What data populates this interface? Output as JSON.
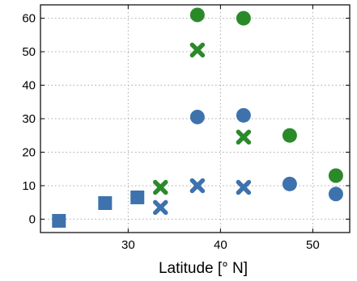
{
  "chart_data": {
    "type": "scatter",
    "title": "",
    "xlabel": "Latitude [° N]",
    "ylabel": "",
    "xlim": [
      20.5,
      54
    ],
    "ylim": [
      -4,
      64
    ],
    "xticks": [
      30,
      40,
      50
    ],
    "yticks": [
      0,
      10,
      20,
      30,
      40,
      50,
      60
    ],
    "grid": true,
    "colors": {
      "blue": "#3d72ad",
      "green": "#2a8a2a"
    },
    "series": [
      {
        "color": "#3d72ad",
        "marker": "square",
        "points": [
          [
            22.5,
            -0.5
          ],
          [
            27.5,
            4.8
          ],
          [
            31,
            6.5
          ]
        ]
      },
      {
        "color": "#3d72ad",
        "marker": "x",
        "points": [
          [
            33.5,
            3.5
          ],
          [
            37.5,
            10
          ],
          [
            42.5,
            9.5
          ]
        ]
      },
      {
        "color": "#3d72ad",
        "marker": "circle",
        "points": [
          [
            37.5,
            30.5
          ],
          [
            42.5,
            31
          ],
          [
            47.5,
            10.5
          ],
          [
            52.5,
            7.5
          ]
        ]
      },
      {
        "color": "#2a8a2a",
        "marker": "x",
        "points": [
          [
            33.5,
            9.5
          ],
          [
            37.5,
            50.5
          ],
          [
            42.5,
            24.5
          ]
        ]
      },
      {
        "color": "#2a8a2a",
        "marker": "circle",
        "points": [
          [
            37.5,
            61
          ],
          [
            42.5,
            60
          ],
          [
            47.5,
            25
          ],
          [
            52.5,
            13
          ]
        ]
      }
    ]
  }
}
